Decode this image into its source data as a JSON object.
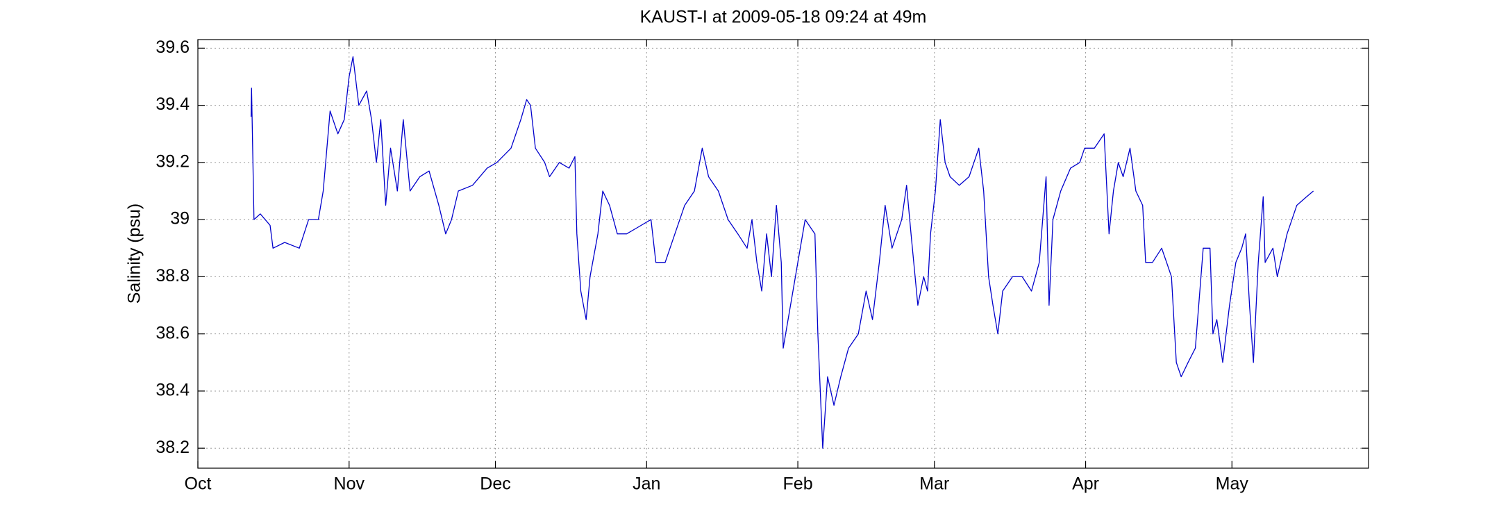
{
  "chart_data": {
    "type": "line",
    "title": "KAUST-I at 2009-05-18 09:24 at 49m",
    "y_label": "Salinity (psu)",
    "color": "#0000cc",
    "grid": true,
    "xlim": [
      0,
      240
    ],
    "xticks": [
      {
        "value": 0,
        "label": "Oct"
      },
      {
        "value": 31,
        "label": "Nov"
      },
      {
        "value": 61,
        "label": "Dec"
      },
      {
        "value": 92,
        "label": "Jan"
      },
      {
        "value": 123,
        "label": "Feb"
      },
      {
        "value": 151,
        "label": "Mar"
      },
      {
        "value": 182,
        "label": "Apr"
      },
      {
        "value": 212,
        "label": "May"
      }
    ],
    "ylim": [
      38.13,
      39.63
    ],
    "yticks": [
      38.2,
      38.4,
      38.6,
      38.8,
      39,
      39.2,
      39.4,
      39.6
    ],
    "x": [
      10.9,
      11.0,
      11.5,
      12.8,
      14.8,
      15.4,
      17.8,
      20.8,
      22.7,
      24.7,
      25.7,
      27.1,
      28.7,
      30.0,
      31.0,
      31.8,
      33.0,
      34.6,
      35.6,
      36.6,
      37.5,
      38.5,
      39.5,
      40.9,
      42.1,
      43.5,
      45.5,
      47.4,
      49.4,
      50.8,
      52.0,
      53.4,
      56.3,
      59.3,
      61.3,
      64.2,
      66.2,
      67.4,
      68.2,
      69.2,
      71.1,
      72.1,
      74.1,
      76.1,
      77.3,
      77.7,
      78.5,
      79.6,
      80.4,
      82.0,
      83.0,
      84.4,
      86.0,
      87.9,
      89.9,
      92.9,
      93.9,
      95.8,
      97.8,
      99.8,
      101.8,
      103.4,
      104.7,
      106.7,
      108.7,
      110.7,
      112.6,
      113.6,
      114.6,
      115.6,
      116.6,
      117.6,
      118.6,
      119.6,
      120.0,
      124.5,
      126.5,
      127.1,
      128.1,
      129.1,
      130.4,
      131.8,
      133.4,
      135.4,
      137.0,
      138.3,
      139.7,
      140.9,
      142.3,
      144.3,
      145.3,
      146.2,
      147.6,
      148.8,
      149.6,
      150.2,
      151.2,
      152.2,
      153.2,
      154.2,
      156.1,
      158.1,
      160.1,
      161.1,
      162.1,
      163.0,
      164.0,
      165.0,
      167.0,
      169.0,
      170.9,
      172.5,
      173.9,
      174.5,
      175.3,
      176.9,
      178.9,
      180.8,
      181.8,
      183.8,
      185.8,
      186.8,
      187.7,
      188.7,
      189.7,
      191.1,
      192.3,
      193.7,
      194.3,
      195.7,
      197.6,
      198.6,
      199.6,
      200.6,
      201.6,
      203.0,
      204.5,
      206.1,
      207.5,
      208.1,
      208.9,
      210.1,
      211.5,
      212.8,
      214.0,
      214.8,
      215.6,
      216.4,
      217.4,
      218.4,
      218.8,
      220.4,
      221.3,
      223.3,
      225.3,
      227.3,
      228.7
    ],
    "values": [
      39.36,
      39.46,
      39.0,
      39.02,
      38.98,
      38.9,
      38.92,
      38.9,
      39.0,
      39.0,
      39.1,
      39.38,
      39.3,
      39.35,
      39.5,
      39.57,
      39.4,
      39.45,
      39.35,
      39.2,
      39.35,
      39.05,
      39.25,
      39.1,
      39.35,
      39.1,
      39.15,
      39.17,
      39.05,
      38.95,
      39.0,
      39.1,
      39.12,
      39.18,
      39.2,
      39.25,
      39.35,
      39.42,
      39.4,
      39.25,
      39.2,
      39.15,
      39.2,
      39.18,
      39.22,
      38.95,
      38.75,
      38.65,
      38.8,
      38.95,
      39.1,
      39.05,
      38.95,
      38.95,
      38.97,
      39.0,
      38.85,
      38.85,
      38.95,
      39.05,
      39.1,
      39.25,
      39.15,
      39.1,
      39.0,
      38.95,
      38.9,
      39.0,
      38.85,
      38.75,
      38.95,
      38.8,
      39.05,
      38.85,
      38.55,
      39.0,
      38.95,
      38.6,
      38.2,
      38.45,
      38.35,
      38.45,
      38.55,
      38.6,
      38.75,
      38.65,
      38.85,
      39.05,
      38.9,
      39.0,
      39.12,
      38.95,
      38.7,
      38.8,
      38.75,
      38.95,
      39.1,
      39.35,
      39.2,
      39.15,
      39.12,
      39.15,
      39.25,
      39.1,
      38.8,
      38.7,
      38.6,
      38.75,
      38.8,
      38.8,
      38.75,
      38.85,
      39.15,
      38.7,
      39.0,
      39.1,
      39.18,
      39.2,
      39.25,
      39.25,
      39.3,
      38.95,
      39.1,
      39.2,
      39.15,
      39.25,
      39.1,
      39.05,
      38.85,
      38.85,
      38.9,
      38.85,
      38.8,
      38.5,
      38.45,
      38.5,
      38.55,
      38.9,
      38.9,
      38.6,
      38.65,
      38.5,
      38.7,
      38.85,
      38.9,
      38.95,
      38.7,
      38.5,
      38.85,
      39.08,
      38.85,
      38.9,
      38.8,
      38.95,
      39.05,
      39.08,
      39.1
    ]
  }
}
